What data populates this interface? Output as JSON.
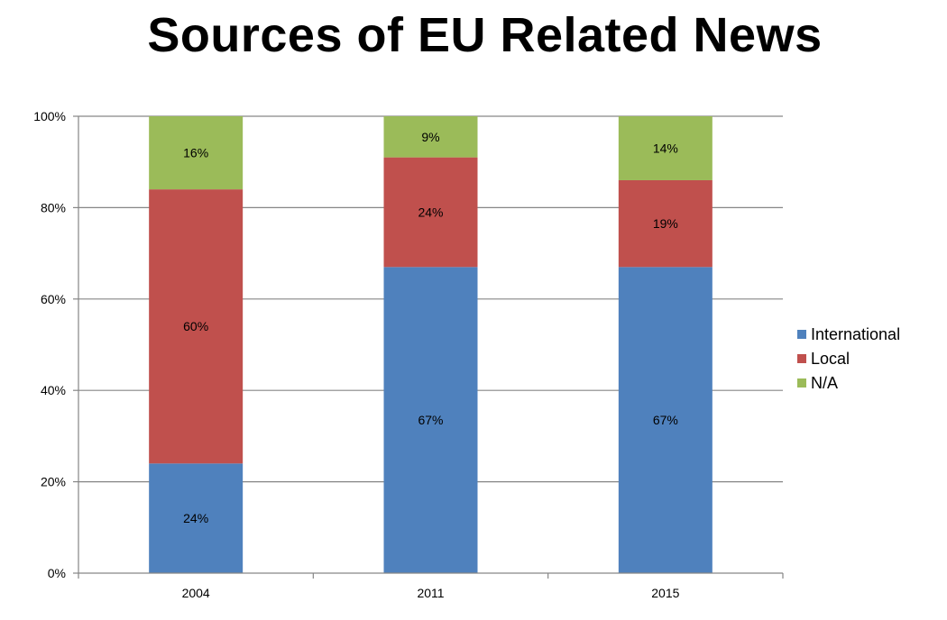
{
  "chart_data": {
    "type": "bar",
    "stacked": true,
    "title": "Sources of EU Related News",
    "categories": [
      "2004",
      "2011",
      "2015"
    ],
    "series": [
      {
        "name": "International",
        "color": "#4F81BD",
        "values": [
          24,
          67,
          67
        ],
        "labels": [
          "24%",
          "67%",
          "67%"
        ]
      },
      {
        "name": "Local",
        "color": "#C0504D",
        "values": [
          60,
          24,
          19
        ],
        "labels": [
          "60%",
          "24%",
          "19%"
        ]
      },
      {
        "name": "N/A",
        "color": "#9BBB59",
        "values": [
          16,
          9,
          14
        ],
        "labels": [
          "16%",
          "9%",
          "14%"
        ]
      }
    ],
    "ylim": [
      0,
      100
    ],
    "yticks": [
      "0%",
      "20%",
      "40%",
      "60%",
      "80%",
      "100%"
    ],
    "grid": true,
    "legend": "right"
  }
}
